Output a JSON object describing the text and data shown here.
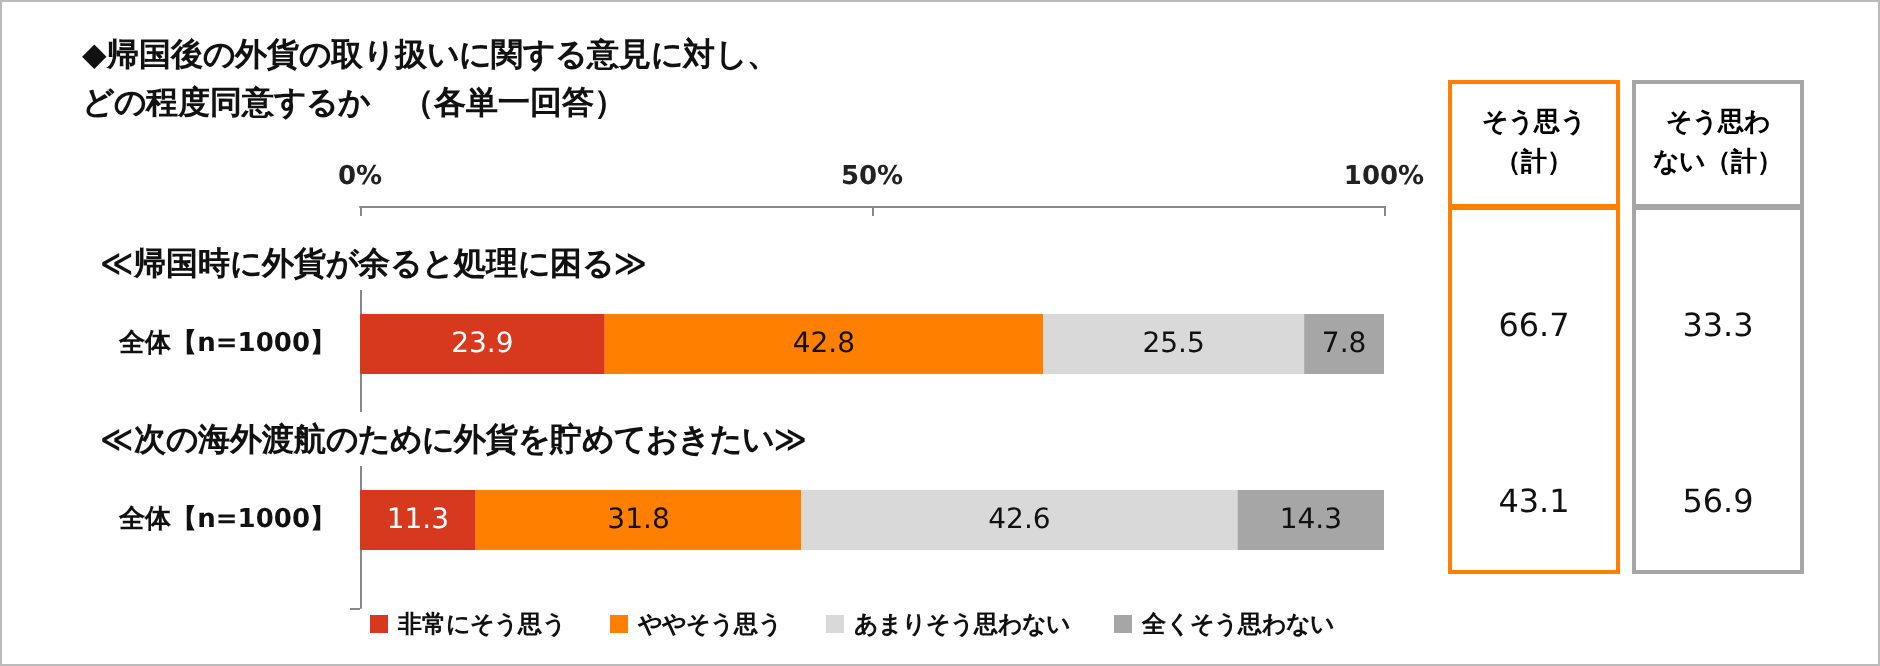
{
  "chart_data": {
    "type": "bar",
    "orientation": "horizontal",
    "stacked": true,
    "title": "◆帰国後の外貨の取り扱いに関する意見に対し、どの程度同意するか　（各単一回答）",
    "categories": [
      "全体【n=1000】",
      "全体【n=1000】"
    ],
    "series": [
      {
        "name": "非常にそう思う",
        "color": "#d7391f",
        "values": [
          23.9,
          11.3
        ]
      },
      {
        "name": "ややそう思う",
        "color": "#ff7f00",
        "values": [
          42.8,
          31.8
        ]
      },
      {
        "name": "あまりそう思わない",
        "color": "#d9d9d9",
        "values": [
          25.5,
          42.6
        ]
      },
      {
        "name": "全くそう思わない",
        "color": "#a6a6a6",
        "values": [
          7.8,
          14.3
        ]
      }
    ],
    "xlim": [
      0,
      100
    ],
    "xticks": [
      {
        "value": 0,
        "label": "0%"
      },
      {
        "value": 50,
        "label": "50%"
      },
      {
        "value": 100,
        "label": "100%"
      }
    ],
    "data_labels": true,
    "legend": "bottom",
    "grid": false,
    "annotations": [
      "≪帰国時に外貨が余ると処理に困る≫",
      "≪次の海外渡航のために外貨を貯めておきたい≫",
      "そう思う（計）",
      "そう思わない（計）",
      "66.7",
      "33.3",
      "43.1",
      "56.9"
    ]
  }
}
